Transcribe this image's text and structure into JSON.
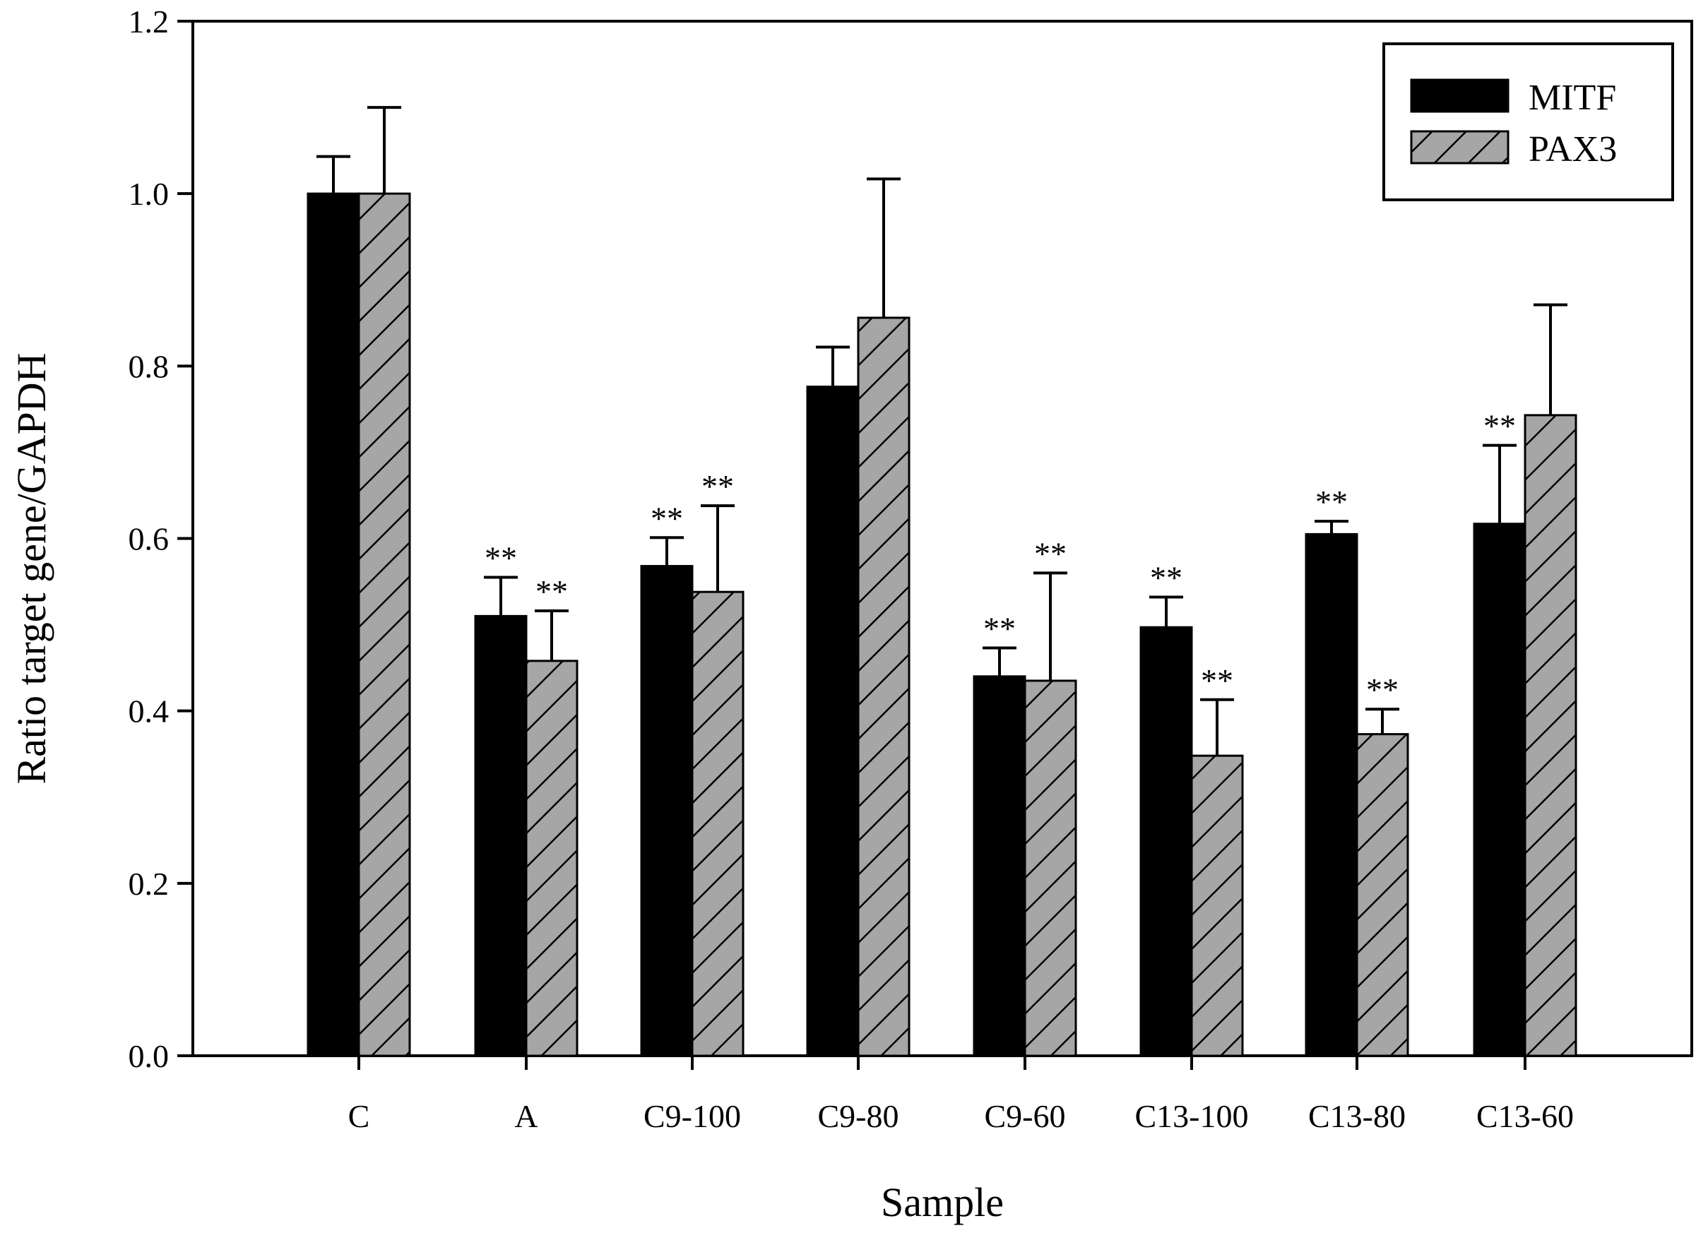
{
  "chart_data": {
    "type": "bar",
    "title": "",
    "xlabel": "Sample",
    "ylabel": "Ratio target gene/GAPDH",
    "ylim": [
      0,
      1.2
    ],
    "yticks": [
      "0.0",
      "0.2",
      "0.4",
      "0.6",
      "0.8",
      "1.0",
      "1.2"
    ],
    "ytick_values": [
      0,
      0.2,
      0.4,
      0.6,
      0.8,
      1.0,
      1.2
    ],
    "grid": false,
    "legend_position": "top-right",
    "categories": [
      "C",
      "A",
      "C9-100",
      "C9-80",
      "C9-60",
      "C13-100",
      "C13-80",
      "C13-60"
    ],
    "series": [
      {
        "name": "MITF",
        "fill": "solid",
        "color": "#000000",
        "values": [
          1.0,
          0.51,
          0.568,
          0.776,
          0.44,
          0.497,
          0.605,
          0.617
        ],
        "errors": [
          0.043,
          0.045,
          0.033,
          0.046,
          0.033,
          0.035,
          0.015,
          0.091
        ],
        "significance": [
          "",
          "**",
          "**",
          "",
          "**",
          "**",
          "**",
          "**"
        ]
      },
      {
        "name": "PAX3",
        "fill": "hatched",
        "color": "#a6a6a6",
        "values": [
          1.0,
          0.458,
          0.538,
          0.856,
          0.435,
          0.348,
          0.373,
          0.743
        ],
        "errors": [
          0.1,
          0.058,
          0.1,
          0.161,
          0.125,
          0.065,
          0.029,
          0.128
        ],
        "significance": [
          "",
          "**",
          "**",
          "",
          "**",
          "**",
          "**",
          ""
        ]
      }
    ]
  }
}
